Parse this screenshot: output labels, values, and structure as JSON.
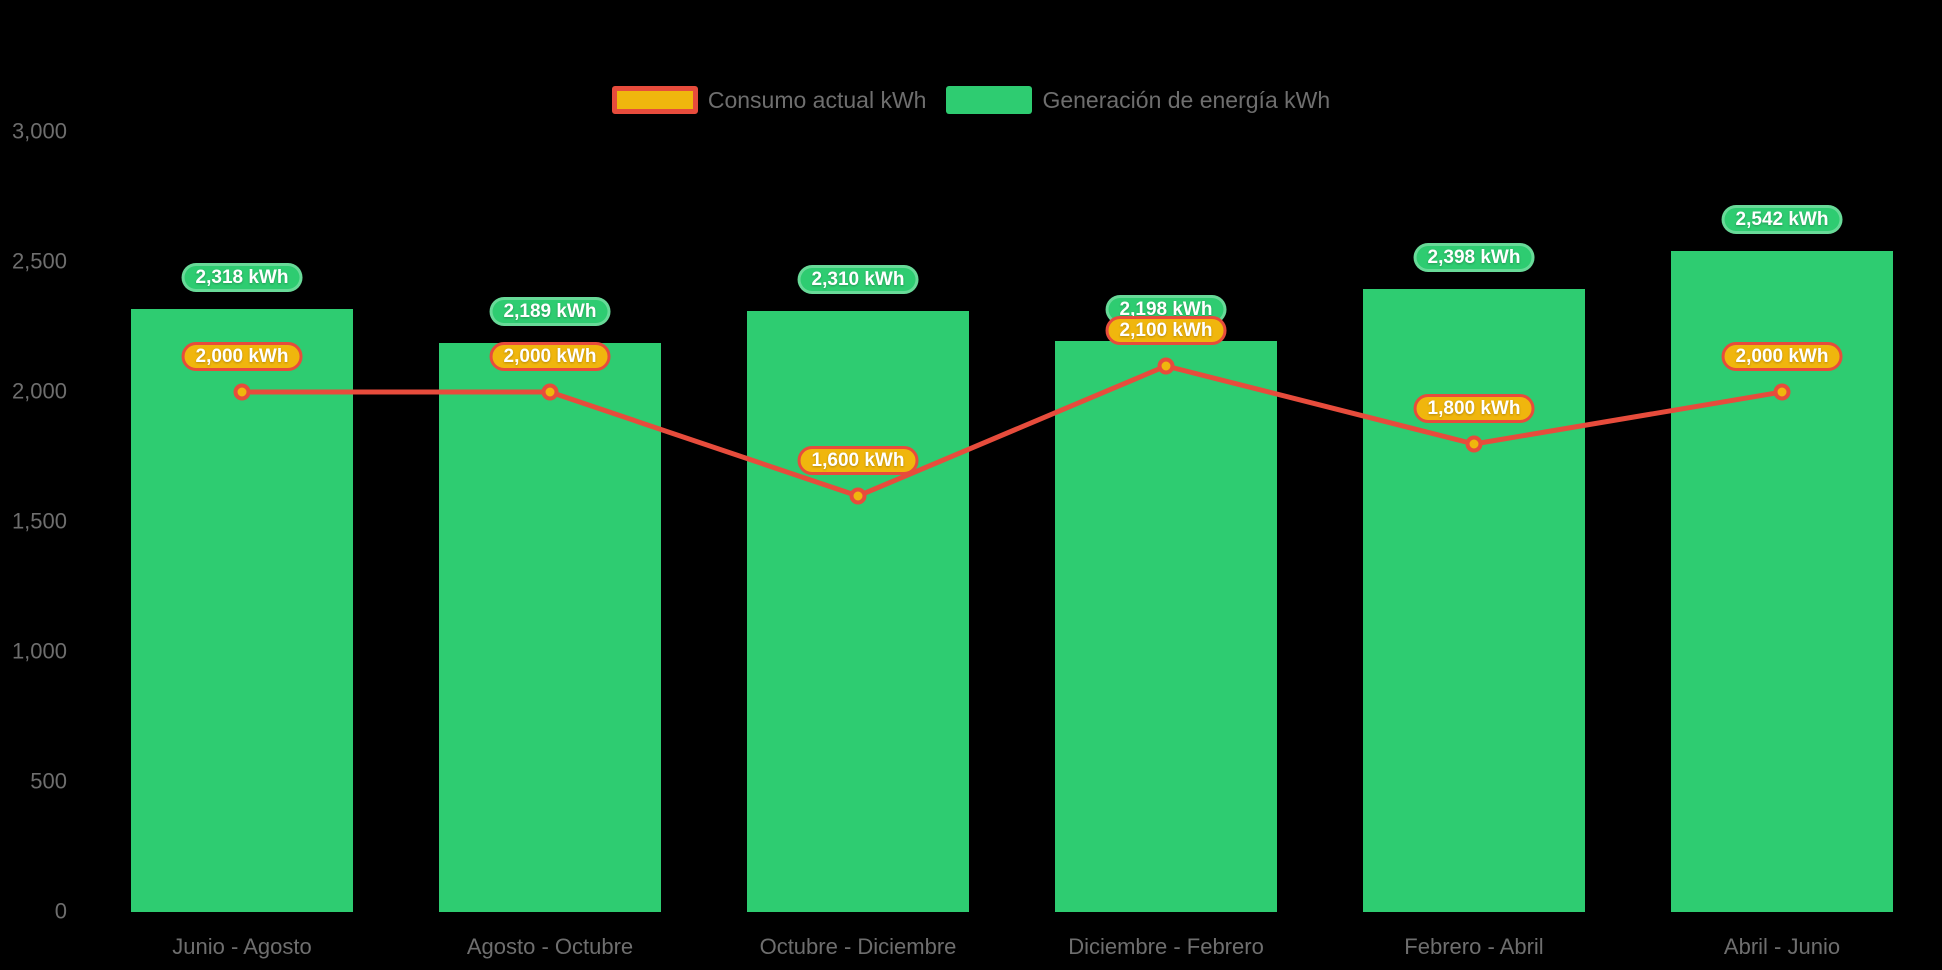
{
  "chart": {
    "background": "#000000"
  },
  "legend": {
    "items": [
      {
        "label": "Consumo actual kWh",
        "swatch_fill": "#f0b60d",
        "swatch_border": "#e74c3c"
      },
      {
        "label": "Generación de energía kWh",
        "swatch_fill": "#2ecc71",
        "swatch_border": ""
      }
    ]
  },
  "chart_data": {
    "type": "bar",
    "subtype": "bar-and-line combo",
    "title": "",
    "xlabel": "",
    "ylabel": "",
    "categories": [
      "Junio - Agosto",
      "Agosto - Octubre",
      "Octubre - Diciembre",
      "Diciembre - Febrero",
      "Febrero - Abril",
      "Abril - Junio"
    ],
    "series": [
      {
        "name": "Generación de energía kWh",
        "type": "bar",
        "color": "#2ecc71",
        "values": [
          2318,
          2189,
          2310,
          2198,
          2398,
          2542
        ],
        "data_labels": [
          "2,318 kWh",
          "2,189 kWh",
          "2,310 kWh",
          "2,198 kWh",
          "2,398 kWh",
          "2,542 kWh"
        ]
      },
      {
        "name": "Consumo actual kWh",
        "type": "line",
        "color": "#e74c3c",
        "marker_fill": "#f0b60d",
        "marker_stroke": "#e74c3c",
        "values": [
          2000,
          2000,
          1600,
          2100,
          1800,
          2000
        ],
        "data_labels": [
          "2,000 kWh",
          "2,000 kWh",
          "1,600 kWh",
          "2,100 kWh",
          "1,800 kWh",
          "2,000 kWh"
        ]
      }
    ],
    "y_axis": {
      "min": 0,
      "max": 3000,
      "ticks": [
        {
          "value": 3000,
          "label": "3,000"
        },
        {
          "value": 2500,
          "label": "2,500"
        },
        {
          "value": 2000,
          "label": "2,000"
        },
        {
          "value": 1500,
          "label": "1,500"
        },
        {
          "value": 1000,
          "label": "1,000"
        },
        {
          "value": 500,
          "label": "500"
        },
        {
          "value": 0,
          "label": "0"
        }
      ]
    },
    "grid": false,
    "legend_position": "top-center",
    "colors": {
      "bar": "#2ecc71",
      "line": "#e74c3c",
      "marker_fill": "#f0b60d",
      "axis_text": "#6e6e6e",
      "data_label_text": "#ffffff"
    }
  }
}
